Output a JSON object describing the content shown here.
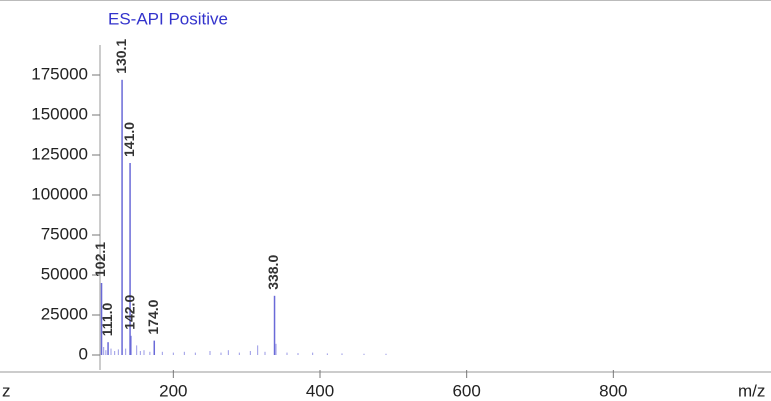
{
  "chart_data": {
    "type": "bar",
    "title": "ES-API Positive",
    "x_label": "m/z",
    "left_label": "z",
    "x": [
      102.1,
      111.0,
      130.1,
      141.0,
      142.0,
      174.0,
      338.0
    ],
    "values": [
      45000,
      8000,
      172000,
      120000,
      12000,
      9000,
      37000
    ],
    "x_labels": [
      "102.1",
      "111.0",
      "130.1",
      "141.0",
      "142.0",
      "174.0",
      "338.0"
    ],
    "color": "#6a6ad8",
    "noise": {
      "x": [
        105,
        108,
        115,
        120,
        125,
        135,
        150,
        155,
        160,
        168,
        185,
        200,
        215,
        230,
        250,
        265,
        275,
        290,
        305,
        315,
        325,
        340,
        355,
        370,
        390,
        410,
        430,
        460,
        490
      ],
      "values": [
        5000,
        3000,
        4000,
        2500,
        3500,
        4000,
        6000,
        2500,
        3000,
        2000,
        2000,
        1500,
        2000,
        1500,
        2500,
        1500,
        3000,
        1500,
        2500,
        6000,
        2000,
        7000,
        1500,
        1200,
        1500,
        1000,
        1000,
        800,
        800
      ],
      "color": "#9a9ae6"
    },
    "xlim": [
      100,
      1015
    ],
    "ylim": [
      -9375,
      193750
    ],
    "xticks": [
      200,
      400,
      600,
      800
    ],
    "yticks": [
      0,
      25000,
      50000,
      75000,
      100000,
      125000,
      150000,
      175000
    ]
  }
}
